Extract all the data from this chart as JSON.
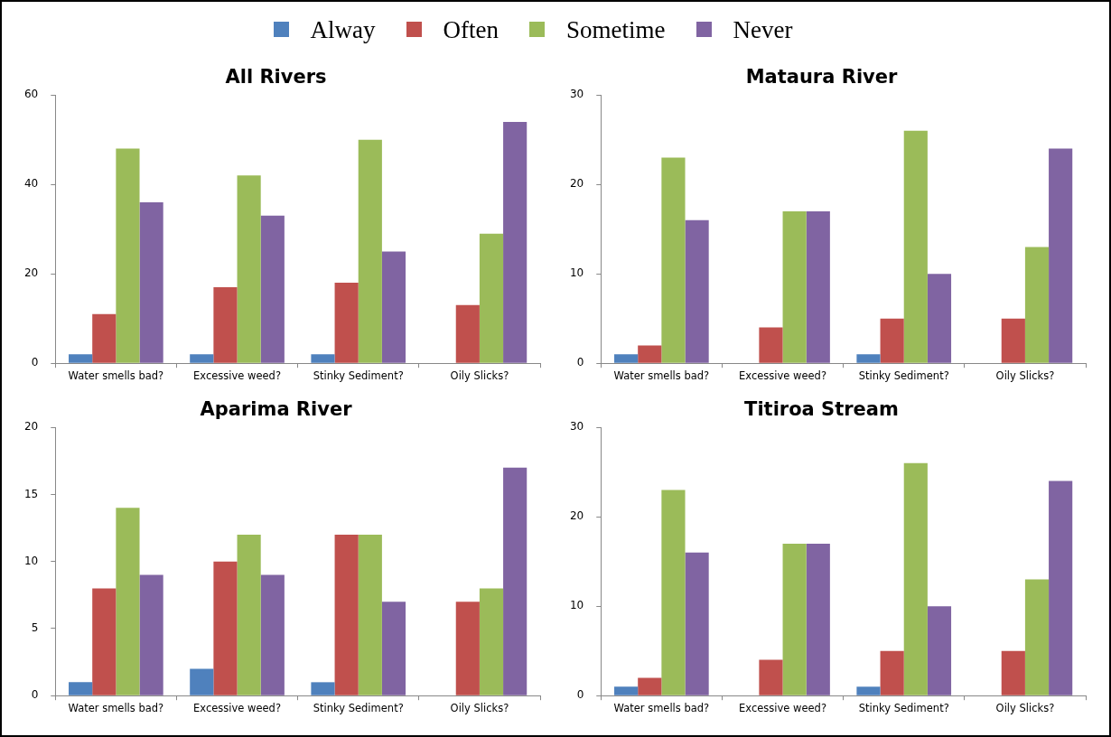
{
  "chart_data": [
    {
      "type": "bar",
      "title": "All Rivers",
      "categories": [
        "Water smells bad?",
        "Excessive weed?",
        "Stinky Sediment?",
        "Oily Slicks?"
      ],
      "ylim": [
        0,
        60
      ],
      "yticks": [
        0,
        20,
        40,
        60
      ],
      "grid": false,
      "legend": "top",
      "series": [
        {
          "name": "Alway",
          "color": "#4f81bd",
          "values": [
            2,
            2,
            2,
            0
          ]
        },
        {
          "name": "Often",
          "color": "#c0504d",
          "values": [
            11,
            17,
            18,
            13
          ]
        },
        {
          "name": "Sometime",
          "color": "#9bbb59",
          "values": [
            48,
            42,
            50,
            29
          ]
        },
        {
          "name": "Never",
          "color": "#8064a2",
          "values": [
            36,
            33,
            25,
            54
          ]
        }
      ]
    },
    {
      "type": "bar",
      "title": "Mataura River",
      "categories": [
        "Water smells bad?",
        "Excessive weed?",
        "Stinky Sediment?",
        "Oily Slicks?"
      ],
      "ylim": [
        0,
        30
      ],
      "yticks": [
        0,
        10,
        20,
        30
      ],
      "grid": false,
      "series": [
        {
          "color": "#4f81bd",
          "values": [
            1,
            0,
            1,
            0
          ]
        },
        {
          "color": "#c0504d",
          "values": [
            2,
            4,
            5,
            5
          ]
        },
        {
          "color": "#9bbb59",
          "values": [
            23,
            17,
            26,
            13
          ]
        },
        {
          "color": "#8064a2",
          "values": [
            16,
            17,
            10,
            24
          ]
        }
      ]
    },
    {
      "type": "bar",
      "title": "Aparima River",
      "categories": [
        "Water smells bad?",
        "Excessive weed?",
        "Stinky Sediment?",
        "Oily Slicks?"
      ],
      "ylim": [
        0,
        20
      ],
      "yticks": [
        0,
        5,
        10,
        15,
        20
      ],
      "grid": false,
      "series": [
        {
          "color": "#4f81bd",
          "values": [
            1,
            2,
            1,
            0
          ]
        },
        {
          "color": "#c0504d",
          "values": [
            8,
            10,
            12,
            7
          ]
        },
        {
          "color": "#9bbb59",
          "values": [
            14,
            12,
            12,
            8
          ]
        },
        {
          "color": "#8064a2",
          "values": [
            9,
            9,
            7,
            17
          ]
        }
      ]
    },
    {
      "type": "bar",
      "title": "Titiroa Stream",
      "categories": [
        "Water smells bad?",
        "Excessive weed?",
        "Stinky Sediment?",
        "Oily Slicks?"
      ],
      "ylim": [
        0,
        30
      ],
      "yticks": [
        0,
        10,
        20,
        30
      ],
      "grid": false,
      "series": [
        {
          "color": "#4f81bd",
          "values": [
            1,
            0,
            1,
            0
          ]
        },
        {
          "color": "#c0504d",
          "values": [
            2,
            4,
            5,
            5
          ]
        },
        {
          "color": "#9bbb59",
          "values": [
            23,
            17,
            26,
            13
          ]
        },
        {
          "color": "#8064a2",
          "values": [
            16,
            17,
            10,
            24
          ]
        }
      ]
    }
  ]
}
